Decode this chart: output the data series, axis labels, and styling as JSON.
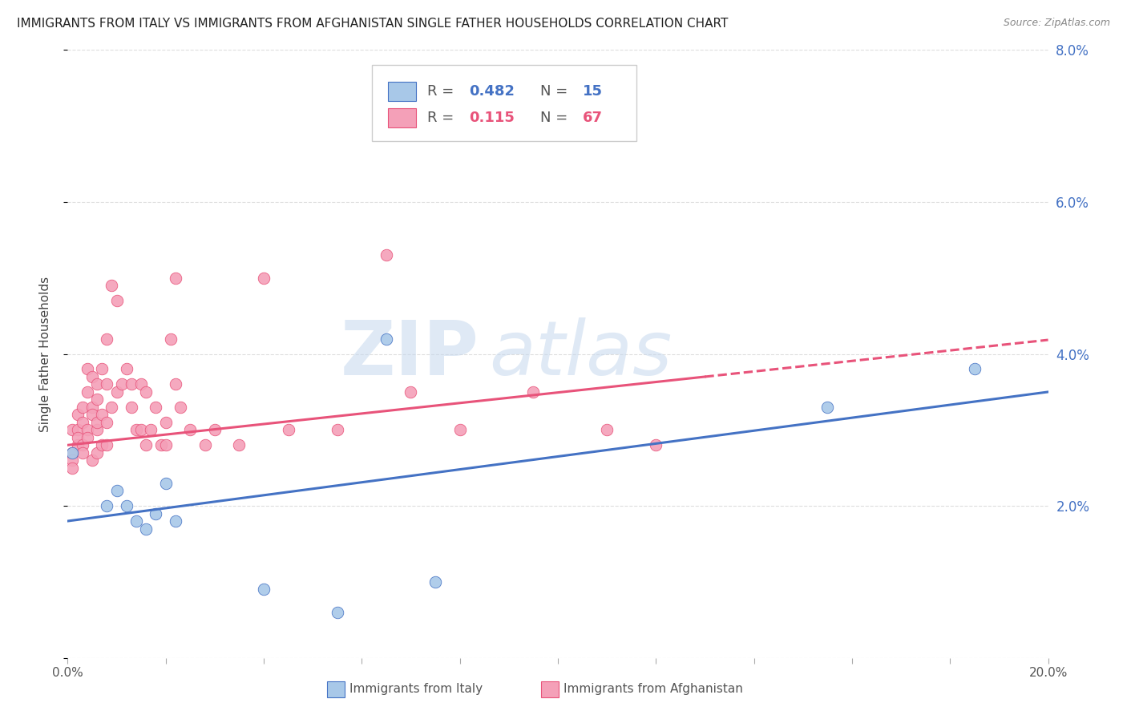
{
  "title": "IMMIGRANTS FROM ITALY VS IMMIGRANTS FROM AFGHANISTAN SINGLE FATHER HOUSEHOLDS CORRELATION CHART",
  "source": "Source: ZipAtlas.com",
  "ylabel": "Single Father Households",
  "xlim": [
    0.0,
    0.2
  ],
  "ylim": [
    0.0,
    0.08
  ],
  "italy_color": "#A8C8E8",
  "afghanistan_color": "#F4A0B8",
  "italy_line_color": "#4472C4",
  "afghanistan_line_color": "#E8537A",
  "right_tick_color": "#4472C4",
  "grid_color": "#DDDDDD",
  "background_color": "#FFFFFF",
  "watermark": "ZIPatlas",
  "watermark_color": "#C8D8EC",
  "italy_R": 0.482,
  "italy_N": 15,
  "afghanistan_R": 0.115,
  "afghanistan_N": 67,
  "legend_italy_label": "Immigrants from Italy",
  "legend_afghanistan_label": "Immigrants from Afghanistan",
  "italy_x": [
    0.001,
    0.008,
    0.01,
    0.012,
    0.014,
    0.016,
    0.018,
    0.02,
    0.022,
    0.04,
    0.055,
    0.065,
    0.075,
    0.155,
    0.185
  ],
  "italy_y": [
    0.027,
    0.02,
    0.022,
    0.02,
    0.018,
    0.017,
    0.019,
    0.023,
    0.018,
    0.009,
    0.006,
    0.042,
    0.01,
    0.033,
    0.038
  ],
  "afghanistan_x": [
    0.001,
    0.001,
    0.001,
    0.001,
    0.002,
    0.002,
    0.002,
    0.002,
    0.003,
    0.003,
    0.003,
    0.003,
    0.004,
    0.004,
    0.004,
    0.004,
    0.005,
    0.005,
    0.005,
    0.005,
    0.006,
    0.006,
    0.006,
    0.006,
    0.006,
    0.007,
    0.007,
    0.007,
    0.008,
    0.008,
    0.008,
    0.008,
    0.009,
    0.009,
    0.01,
    0.01,
    0.011,
    0.012,
    0.013,
    0.013,
    0.014,
    0.015,
    0.015,
    0.016,
    0.016,
    0.017,
    0.018,
    0.019,
    0.02,
    0.02,
    0.021,
    0.022,
    0.022,
    0.023,
    0.025,
    0.028,
    0.03,
    0.035,
    0.04,
    0.045,
    0.055,
    0.065,
    0.07,
    0.08,
    0.095,
    0.11,
    0.12
  ],
  "afghanistan_y": [
    0.03,
    0.027,
    0.026,
    0.025,
    0.032,
    0.028,
    0.03,
    0.029,
    0.031,
    0.028,
    0.033,
    0.027,
    0.03,
    0.035,
    0.038,
    0.029,
    0.037,
    0.033,
    0.032,
    0.026,
    0.034,
    0.03,
    0.036,
    0.031,
    0.027,
    0.032,
    0.028,
    0.038,
    0.042,
    0.036,
    0.031,
    0.028,
    0.033,
    0.049,
    0.047,
    0.035,
    0.036,
    0.038,
    0.033,
    0.036,
    0.03,
    0.036,
    0.03,
    0.035,
    0.028,
    0.03,
    0.033,
    0.028,
    0.031,
    0.028,
    0.042,
    0.036,
    0.05,
    0.033,
    0.03,
    0.028,
    0.03,
    0.028,
    0.05,
    0.03,
    0.03,
    0.053,
    0.035,
    0.03,
    0.035,
    0.03,
    0.028
  ]
}
